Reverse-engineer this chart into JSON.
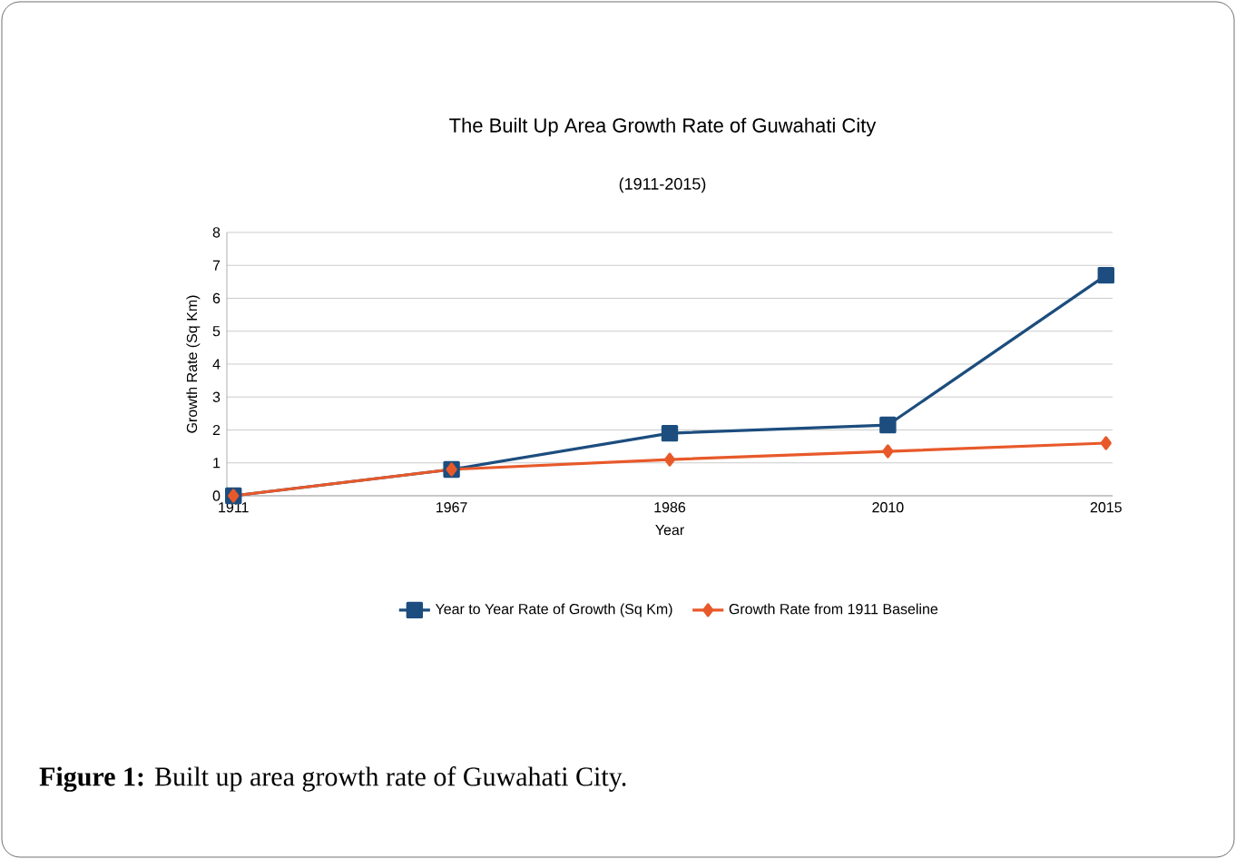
{
  "chart_data": {
    "type": "line",
    "title": "The Built Up Area Growth Rate of Guwahati City",
    "subtitle": "(1911-2015)",
    "xlabel": "Year",
    "ylabel": "Growth Rate (Sq Km)",
    "categories": [
      "1911",
      "1967",
      "1986",
      "2010",
      "2015"
    ],
    "series": [
      {
        "name": "Year to Year Rate of Growth (Sq Km)",
        "color": "#1c4d7e",
        "marker": "square",
        "values": [
          0,
          0.8,
          1.9,
          2.15,
          6.7
        ]
      },
      {
        "name": "Growth Rate from 1911 Baseline",
        "color": "#e8592a",
        "marker": "diamond",
        "values": [
          0,
          0.8,
          1.1,
          1.35,
          1.6
        ]
      }
    ],
    "ylim": [
      0,
      8
    ],
    "yticks": [
      0,
      1,
      2,
      3,
      4,
      5,
      6,
      7,
      8
    ],
    "grid": "y",
    "legend": "bottom",
    "annotations": [
      "**Figure 1:** Built up area growth rate of Guwahati City."
    ]
  }
}
